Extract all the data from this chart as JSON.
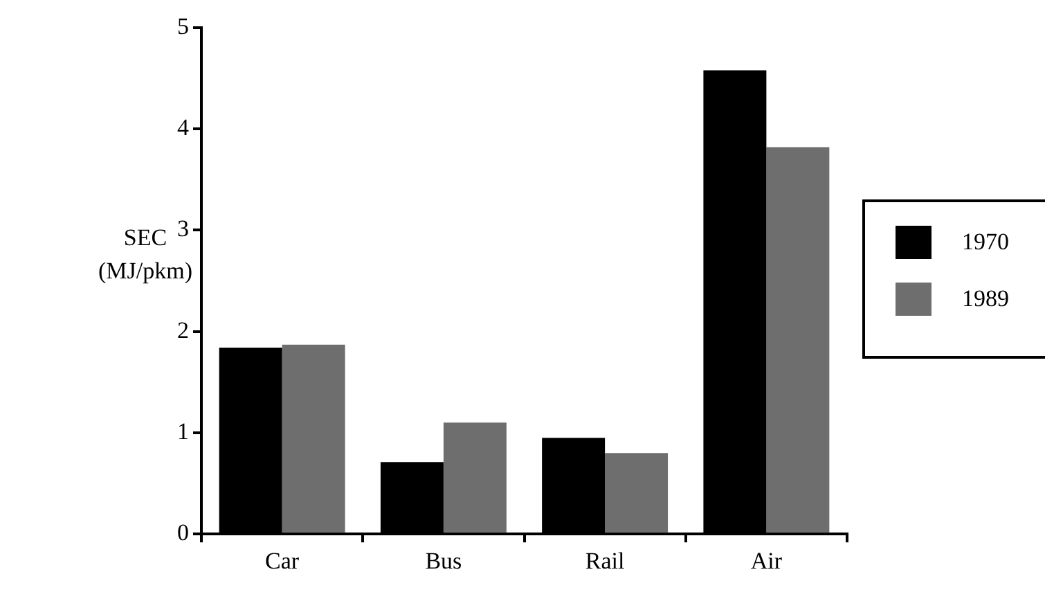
{
  "chart_data": {
    "type": "bar",
    "ylabel": "SEC (MJ/pkm)",
    "categories": [
      "Car",
      "Bus",
      "Rail",
      "Air"
    ],
    "series": [
      {
        "name": "1970",
        "color": "#000000",
        "values": [
          1.84,
          0.71,
          0.95,
          4.58
        ]
      },
      {
        "name": "1989",
        "color": "#6e6e6e",
        "values": [
          1.87,
          1.1,
          0.8,
          3.82
        ]
      }
    ],
    "ylim": [
      0,
      5
    ],
    "yticks": [
      0,
      1,
      2,
      3,
      4,
      5
    ],
    "grid": false,
    "legend": "right"
  }
}
